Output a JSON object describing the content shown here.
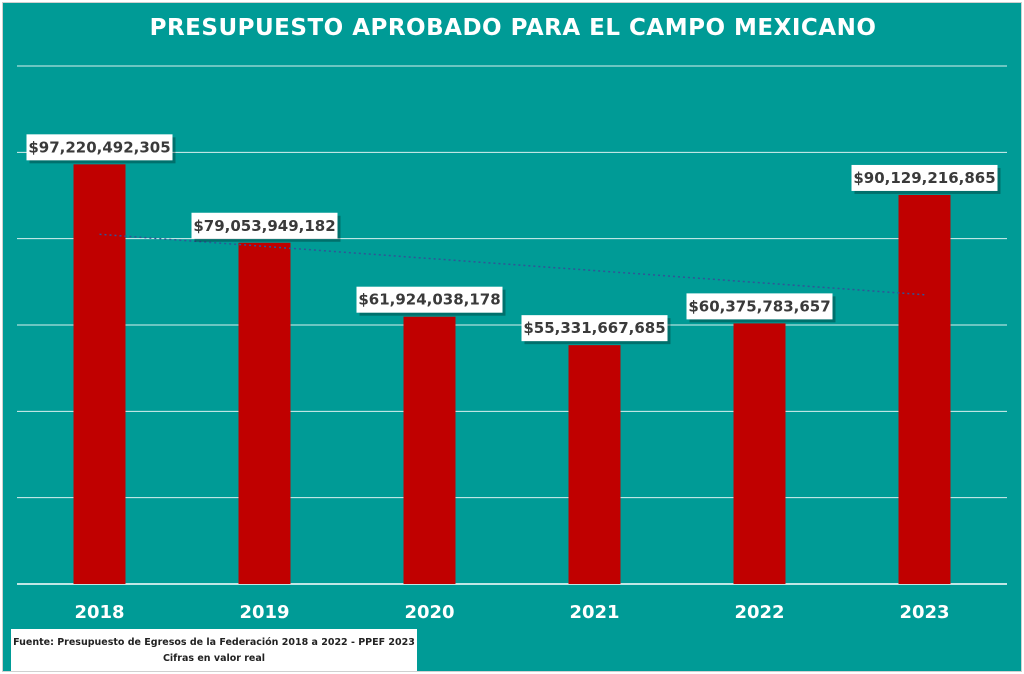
{
  "title": "PRESUPUESTO APROBADO PARA EL CAMPO MEXICANO",
  "source": {
    "line1": "Fuente: Presupuesto de Egresos de la Federación 2018 a 2022 - PPEF 2023",
    "line2": "Cifras en valor real"
  },
  "colors": {
    "background": "#009B96",
    "bar": "#C00000",
    "trendline": "#2F5597",
    "gridline": "#FFFFFF"
  },
  "chart_data": {
    "type": "bar",
    "title": "PRESUPUESTO APROBADO PARA EL CAMPO MEXICANO",
    "xlabel": "",
    "ylabel": "",
    "categories": [
      "2018",
      "2019",
      "2020",
      "2021",
      "2022",
      "2023"
    ],
    "values": [
      97220492305,
      79053949182,
      61924038178,
      55331667685,
      60375783657,
      90129216865
    ],
    "data_labels": [
      "$97,220,492,305",
      "$79,053,949,182",
      "$61,924,038,178",
      "$55,331,667,685",
      "$60,375,783,657",
      "$90,129,216,865"
    ],
    "ylim": [
      0,
      120000000000
    ],
    "y_gridline_step": 20000000000,
    "y_tick_labels_visible": false,
    "grid": true,
    "legend": "none",
    "trendline": {
      "type": "linear",
      "style": "dotted",
      "from": "2018",
      "to": "2023"
    }
  }
}
